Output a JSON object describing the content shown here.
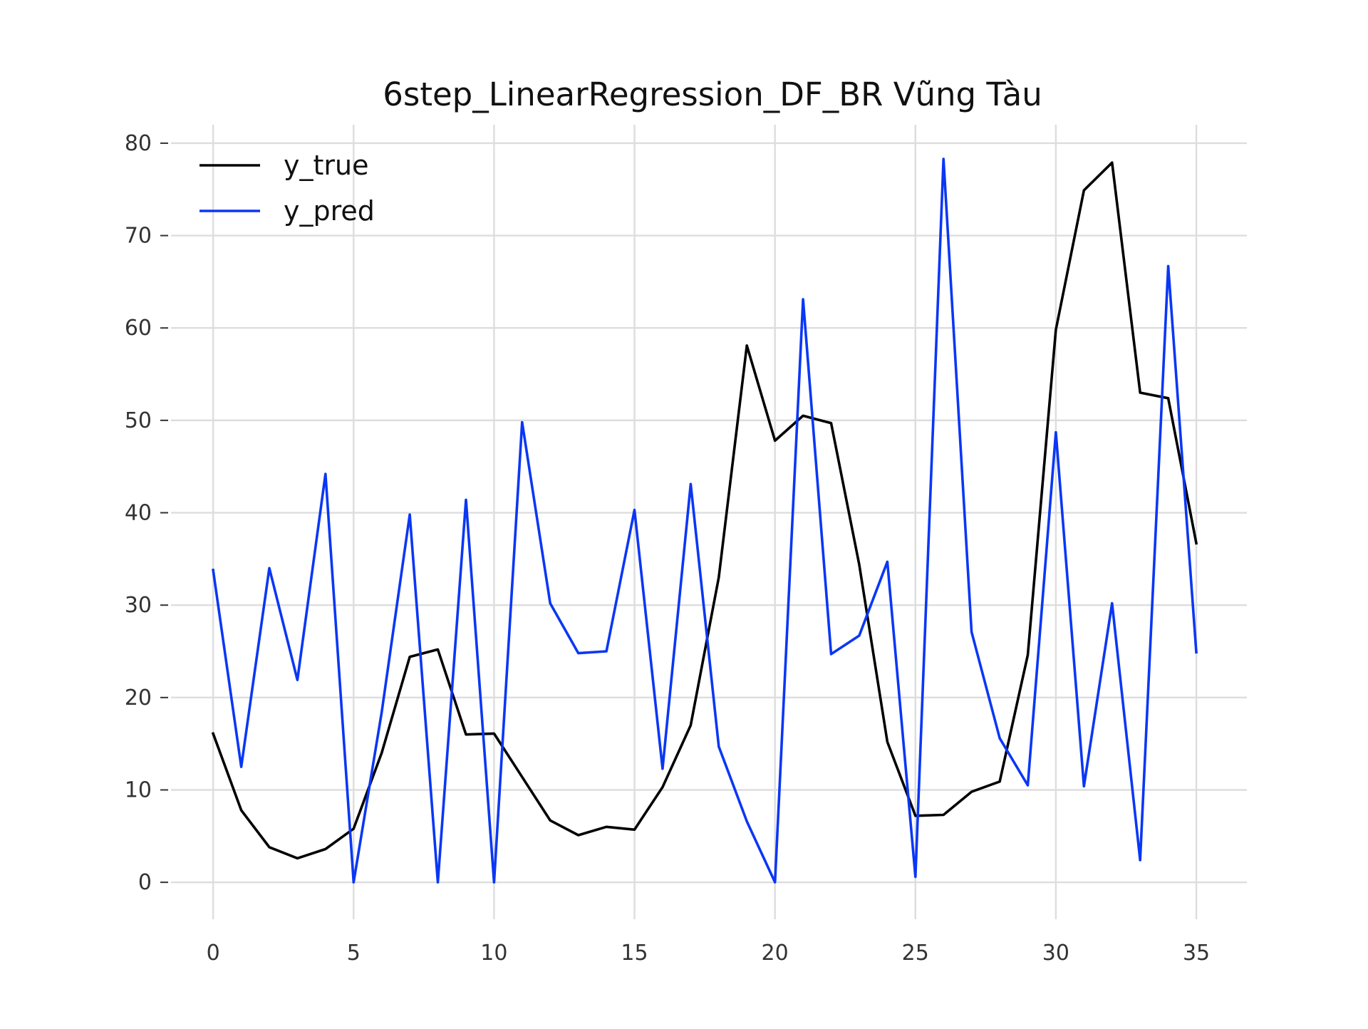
{
  "chart_data": {
    "type": "line",
    "title": "6step_LinearRegression_DF_BR Vũng Tàu",
    "xlabel": "",
    "ylabel": "",
    "x": [
      0,
      1,
      2,
      3,
      4,
      5,
      6,
      7,
      8,
      9,
      10,
      11,
      12,
      13,
      14,
      15,
      16,
      17,
      18,
      19,
      20,
      21,
      22,
      23,
      24,
      25,
      26,
      27,
      28,
      29,
      30,
      31,
      32,
      33,
      34,
      35
    ],
    "xlim": [
      -1.5,
      36.8
    ],
    "ylim": [
      -4,
      82
    ],
    "xticks": [
      0,
      5,
      10,
      15,
      20,
      25,
      30,
      35
    ],
    "yticks": [
      0,
      10,
      20,
      30,
      40,
      50,
      60,
      70,
      80
    ],
    "grid": true,
    "legend_position": "top-left",
    "series": [
      {
        "name": "y_true",
        "color": "#000000",
        "values": [
          16.1,
          7.8,
          3.8,
          2.6,
          3.6,
          5.8,
          14.0,
          24.4,
          25.2,
          16.0,
          16.1,
          11.4,
          6.7,
          5.1,
          6.0,
          5.7,
          10.3,
          17.0,
          33.0,
          58.1,
          47.8,
          50.5,
          49.7,
          34.4,
          15.2,
          7.2,
          7.3,
          9.8,
          10.9,
          24.6,
          59.8,
          74.9,
          77.9,
          53.0,
          52.4,
          36.7
        ]
      },
      {
        "name": "y_pred",
        "color": "#0a37f5",
        "values": [
          33.8,
          12.5,
          34.0,
          21.9,
          44.2,
          0.0,
          18.4,
          39.8,
          0.0,
          41.4,
          0.0,
          49.8,
          30.2,
          24.8,
          25.0,
          40.3,
          12.3,
          43.1,
          14.7,
          6.6,
          0.0,
          63.1,
          24.7,
          26.7,
          34.7,
          0.6,
          78.3,
          27.1,
          15.6,
          10.5,
          48.7,
          10.4,
          30.2,
          2.4,
          66.7,
          24.9
        ]
      }
    ]
  }
}
